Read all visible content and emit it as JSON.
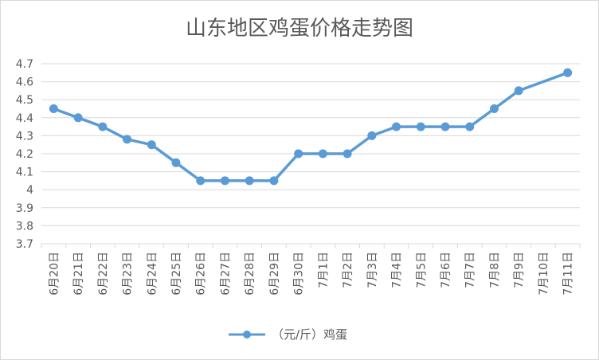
{
  "chart_data": {
    "type": "line",
    "title": "山东地区鸡蛋价格走势图",
    "xlabel": "",
    "ylabel": "",
    "categories": [
      "6月20日",
      "6月21日",
      "6月22日",
      "6月23日",
      "6月24日",
      "6月25日",
      "6月26日",
      "6月27日",
      "6月28日",
      "6月29日",
      "6月30日",
      "7月1日",
      "7月2日",
      "7月3日",
      "7月4日",
      "7月5日",
      "7月6日",
      "7月7日",
      "7月8日",
      "7月9日",
      "7月10日",
      "7月11日"
    ],
    "series": [
      {
        "name": "（元/斤）鸡蛋",
        "values": [
          4.45,
          4.4,
          4.35,
          4.28,
          4.25,
          4.15,
          4.05,
          4.05,
          4.05,
          4.05,
          4.2,
          4.2,
          4.2,
          4.3,
          4.35,
          4.35,
          4.35,
          4.35,
          4.45,
          4.55,
          null,
          4.65
        ]
      }
    ],
    "yticks": [
      "3.7",
      "3.8",
      "3.9",
      "4",
      "4.1",
      "4.2",
      "4.3",
      "4.4",
      "4.5",
      "4.6",
      "4.7"
    ],
    "ylim": [
      3.7,
      4.7
    ],
    "grid": true,
    "legend_position": "bottom",
    "colors": {
      "series": "#5b9bd5",
      "grid": "#d9d9d9",
      "text": "#595959"
    }
  }
}
